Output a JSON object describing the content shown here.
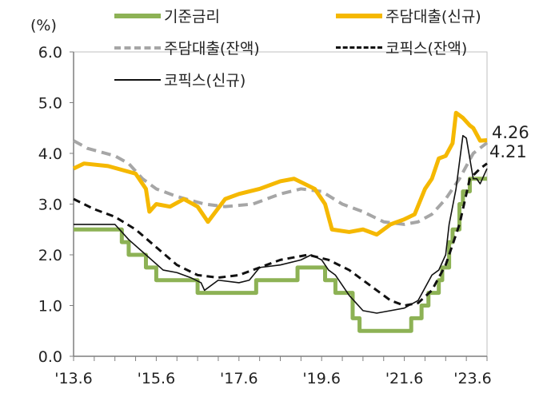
{
  "chart_data": {
    "type": "line",
    "unit_label": "(%)",
    "ylim": [
      0,
      6
    ],
    "y_ticks": [
      "0.0",
      "1.0",
      "2.0",
      "3.0",
      "4.0",
      "5.0",
      "6.0"
    ],
    "x_unit": "months since 2013.6",
    "x_ticks": [
      {
        "m": 0,
        "label": "'13.6"
      },
      {
        "m": 24,
        "label": "'15.6"
      },
      {
        "m": 48,
        "label": "'17.6"
      },
      {
        "m": 72,
        "label": "'19.6"
      },
      {
        "m": 96,
        "label": "'21.6"
      },
      {
        "m": 120,
        "label": "'23.6"
      }
    ],
    "annotations": [
      {
        "text": "4.26",
        "series": "주담대출(신규)"
      },
      {
        "text": "4.21",
        "series": "주담대출(잔액)"
      }
    ],
    "series": [
      {
        "name": "기준금리",
        "color": "#8db255",
        "style": "solid-thick",
        "points": [
          [
            0,
            2.5
          ],
          [
            14,
            2.5
          ],
          [
            14,
            2.25
          ],
          [
            16,
            2.25
          ],
          [
            16,
            2.0
          ],
          [
            21,
            2.0
          ],
          [
            21,
            1.75
          ],
          [
            24,
            1.75
          ],
          [
            24,
            1.5
          ],
          [
            36,
            1.5
          ],
          [
            36,
            1.25
          ],
          [
            53,
            1.25
          ],
          [
            53,
            1.5
          ],
          [
            65,
            1.5
          ],
          [
            65,
            1.75
          ],
          [
            73,
            1.75
          ],
          [
            73,
            1.5
          ],
          [
            76,
            1.5
          ],
          [
            76,
            1.25
          ],
          [
            81,
            1.25
          ],
          [
            81,
            0.75
          ],
          [
            83,
            0.75
          ],
          [
            83,
            0.5
          ],
          [
            98,
            0.5
          ],
          [
            98,
            0.75
          ],
          [
            101,
            0.75
          ],
          [
            101,
            1.0
          ],
          [
            103,
            1.0
          ],
          [
            103,
            1.25
          ],
          [
            106,
            1.25
          ],
          [
            106,
            1.5
          ],
          [
            107,
            1.5
          ],
          [
            107,
            1.75
          ],
          [
            109,
            1.75
          ],
          [
            109,
            2.25
          ],
          [
            110,
            2.25
          ],
          [
            110,
            2.5
          ],
          [
            112,
            2.5
          ],
          [
            112,
            3.0
          ],
          [
            113,
            3.0
          ],
          [
            113,
            3.25
          ],
          [
            115,
            3.25
          ],
          [
            115,
            3.5
          ],
          [
            120,
            3.5
          ]
        ]
      },
      {
        "name": "주담대출(신규)",
        "color": "#f5b800",
        "style": "solid-thick",
        "points": [
          [
            0,
            3.7
          ],
          [
            3,
            3.8
          ],
          [
            10,
            3.75
          ],
          [
            18,
            3.6
          ],
          [
            21,
            3.3
          ],
          [
            22,
            2.85
          ],
          [
            24,
            3.0
          ],
          [
            28,
            2.95
          ],
          [
            32,
            3.1
          ],
          [
            36,
            2.95
          ],
          [
            39,
            2.65
          ],
          [
            44,
            3.1
          ],
          [
            48,
            3.2
          ],
          [
            54,
            3.3
          ],
          [
            60,
            3.45
          ],
          [
            64,
            3.5
          ],
          [
            70,
            3.3
          ],
          [
            73,
            3.0
          ],
          [
            75,
            2.5
          ],
          [
            80,
            2.45
          ],
          [
            84,
            2.5
          ],
          [
            88,
            2.4
          ],
          [
            92,
            2.6
          ],
          [
            96,
            2.7
          ],
          [
            99,
            2.8
          ],
          [
            102,
            3.3
          ],
          [
            104,
            3.5
          ],
          [
            106,
            3.9
          ],
          [
            108,
            3.95
          ],
          [
            110,
            4.2
          ],
          [
            111,
            4.8
          ],
          [
            113,
            4.7
          ],
          [
            115,
            4.55
          ],
          [
            116,
            4.5
          ],
          [
            118,
            4.25
          ],
          [
            120,
            4.26
          ]
        ]
      },
      {
        "name": "주담대출(잔액)",
        "color": "#a6a6a6",
        "style": "dashed-thick",
        "points": [
          [
            0,
            4.25
          ],
          [
            4,
            4.1
          ],
          [
            12,
            3.95
          ],
          [
            16,
            3.8
          ],
          [
            20,
            3.5
          ],
          [
            24,
            3.3
          ],
          [
            30,
            3.15
          ],
          [
            38,
            3.0
          ],
          [
            44,
            2.95
          ],
          [
            52,
            3.0
          ],
          [
            60,
            3.2
          ],
          [
            66,
            3.3
          ],
          [
            72,
            3.25
          ],
          [
            78,
            3.0
          ],
          [
            84,
            2.85
          ],
          [
            90,
            2.65
          ],
          [
            96,
            2.6
          ],
          [
            100,
            2.65
          ],
          [
            104,
            2.8
          ],
          [
            108,
            3.1
          ],
          [
            112,
            3.5
          ],
          [
            116,
            4.0
          ],
          [
            120,
            4.21
          ]
        ]
      },
      {
        "name": "코픽스(잔액)",
        "color": "#111111",
        "style": "dashed",
        "points": [
          [
            0,
            3.1
          ],
          [
            6,
            2.9
          ],
          [
            12,
            2.75
          ],
          [
            18,
            2.5
          ],
          [
            24,
            2.15
          ],
          [
            30,
            1.8
          ],
          [
            36,
            1.6
          ],
          [
            42,
            1.55
          ],
          [
            48,
            1.6
          ],
          [
            54,
            1.75
          ],
          [
            60,
            1.9
          ],
          [
            68,
            2.0
          ],
          [
            74,
            1.9
          ],
          [
            80,
            1.7
          ],
          [
            86,
            1.4
          ],
          [
            92,
            1.1
          ],
          [
            96,
            1.0
          ],
          [
            100,
            1.05
          ],
          [
            104,
            1.3
          ],
          [
            108,
            1.8
          ],
          [
            112,
            2.6
          ],
          [
            115,
            3.5
          ],
          [
            118,
            3.7
          ],
          [
            120,
            3.8
          ]
        ]
      },
      {
        "name": "코픽스(신규)",
        "color": "#111111",
        "style": "solid-thin",
        "points": [
          [
            0,
            2.6
          ],
          [
            6,
            2.6
          ],
          [
            12,
            2.6
          ],
          [
            16,
            2.3
          ],
          [
            21,
            2.0
          ],
          [
            26,
            1.7
          ],
          [
            30,
            1.65
          ],
          [
            34,
            1.55
          ],
          [
            37,
            1.45
          ],
          [
            38,
            1.3
          ],
          [
            42,
            1.5
          ],
          [
            48,
            1.45
          ],
          [
            51,
            1.5
          ],
          [
            54,
            1.75
          ],
          [
            60,
            1.8
          ],
          [
            66,
            1.9
          ],
          [
            69,
            2.0
          ],
          [
            72,
            1.9
          ],
          [
            74,
            1.7
          ],
          [
            76,
            1.6
          ],
          [
            80,
            1.2
          ],
          [
            84,
            0.9
          ],
          [
            88,
            0.85
          ],
          [
            92,
            0.9
          ],
          [
            96,
            0.95
          ],
          [
            100,
            1.1
          ],
          [
            104,
            1.6
          ],
          [
            106,
            1.7
          ],
          [
            108,
            2.0
          ],
          [
            109,
            2.6
          ],
          [
            111,
            3.3
          ],
          [
            113,
            4.35
          ],
          [
            114,
            4.3
          ],
          [
            116,
            3.5
          ],
          [
            117,
            3.5
          ],
          [
            118,
            3.4
          ],
          [
            120,
            3.7
          ]
        ]
      }
    ]
  }
}
